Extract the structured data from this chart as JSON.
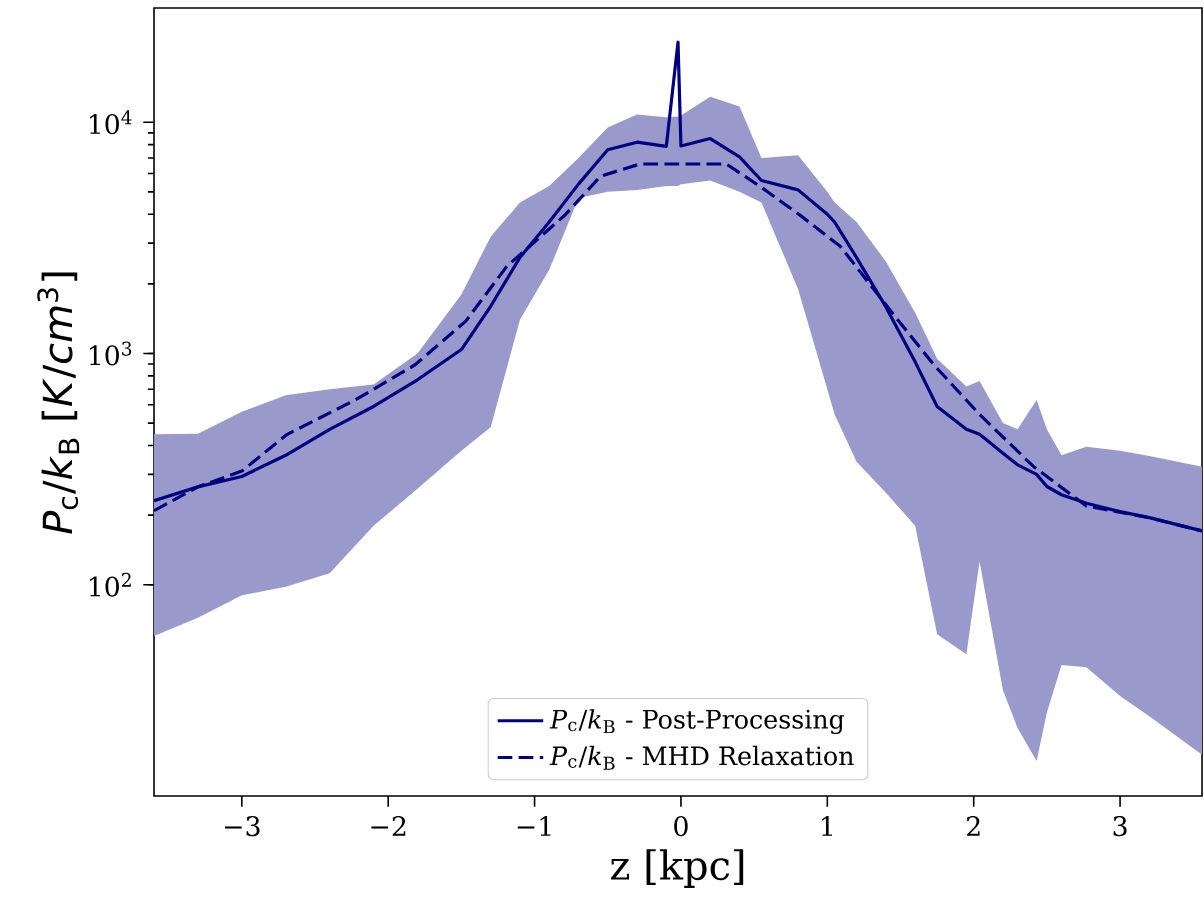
{
  "chart_data": {
    "type": "line",
    "xlabel": "z [kpc]",
    "ylabel": "*P*$_{c}$/*k*$_{B}$ [*K*/*cm*$^{3}$]",
    "log": "y",
    "xlim": [
      -3.6,
      3.56
    ],
    "ylim": [
      12.2,
      31200
    ],
    "xticks": [
      {
        "value": -3,
        "label": "−3"
      },
      {
        "value": -2,
        "label": "−2"
      },
      {
        "value": -1,
        "label": "−1"
      },
      0,
      1,
      2,
      3
    ],
    "yticks": [
      {
        "value": 100,
        "label": "10$^{2}$"
      },
      {
        "value": 1000,
        "label": "10$^{3}$"
      },
      {
        "value": 10000,
        "label": "10$^{4}$"
      }
    ],
    "legend": "bottom",
    "series": [
      {
        "name": "*P*$_{c}$/*k*$_{B}$ - Post-Processing",
        "color": "#000080",
        "line_style": "solid",
        "x": [
          -3.6,
          -3.3,
          -3.0,
          -2.7,
          -2.4,
          -2.1,
          -1.8,
          -1.5,
          -1.3,
          -1.1,
          -0.9,
          -0.7,
          -0.5,
          -0.3,
          -0.1,
          -0.02,
          0.0,
          0.2,
          0.4,
          0.55,
          0.8,
          1.0,
          1.05,
          1.2,
          1.4,
          1.6,
          1.75,
          1.95,
          2.04,
          2.2,
          2.3,
          2.43,
          2.5,
          2.6,
          2.77,
          3.0,
          3.2,
          3.56
        ],
        "values": [
          231,
          265,
          294,
          363,
          470,
          590,
          770,
          1040,
          1600,
          2600,
          3700,
          5400,
          7600,
          8200,
          7870,
          22200,
          7900,
          8500,
          7080,
          5600,
          5100,
          4000,
          3700,
          2600,
          1590,
          920,
          590,
          470,
          447,
          370,
          330,
          300,
          266,
          245,
          225,
          207,
          195,
          171
        ],
        "upper": [
          447,
          450,
          560,
          660,
          700,
          735,
          1000,
          1800,
          3200,
          4500,
          5300,
          7000,
          9500,
          10800,
          10500,
          10600,
          10700,
          12900,
          11700,
          7000,
          7200,
          5000,
          4500,
          3700,
          2500,
          1500,
          950,
          720,
          760,
          500,
          470,
          630,
          470,
          363,
          395,
          380,
          360,
          324
        ],
        "lower": [
          60,
          72,
          90,
          98,
          112,
          180,
          260,
          380,
          480,
          1400,
          2300,
          4700,
          5000,
          5100,
          5300,
          5300,
          5400,
          5600,
          5000,
          4500,
          1900,
          700,
          545,
          340,
          250,
          180,
          61,
          50,
          126,
          35,
          24,
          17.3,
          28,
          45,
          44,
          33,
          27,
          18.4
        ]
      },
      {
        "name": "*P*$_{c}$/*k*$_{B}$ - MHD Relaxation",
        "color": "#000080",
        "line_style": "dashed",
        "x": [
          -3.6,
          -3.3,
          -3.0,
          -2.69,
          -2.23,
          -1.82,
          -1.47,
          -1.19,
          -0.79,
          -0.55,
          -0.28,
          0.31,
          0.54,
          0.81,
          1.09,
          1.45,
          1.73,
          2.04,
          2.41,
          2.77,
          3.18,
          3.56
        ],
        "values": [
          209,
          265,
          310,
          447,
          627,
          890,
          1380,
          2380,
          3980,
          5840,
          6600,
          6600,
          5280,
          3980,
          2900,
          1480,
          890,
          545,
          324,
          219,
          196,
          171
        ]
      }
    ]
  }
}
